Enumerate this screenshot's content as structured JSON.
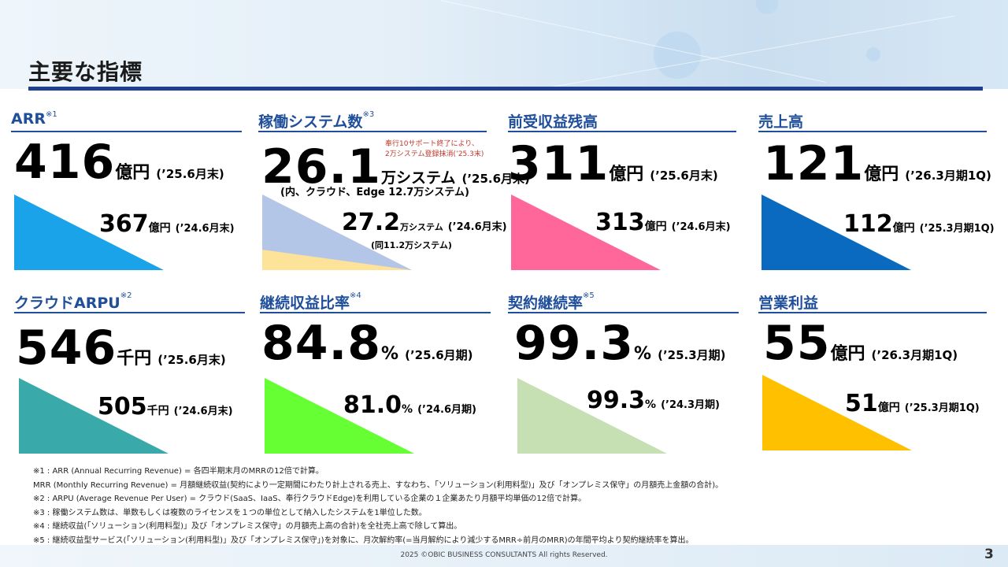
{
  "title": "主要な指標",
  "metrics": {
    "arr": {
      "title": "ARR",
      "mark": "※1",
      "value": "416",
      "unit": "億円",
      "period": "(’25.6月末)",
      "prev_value": "367",
      "prev_unit": "億円",
      "prev_period": "(’24.6月末)",
      "color": "#1aa3e8"
    },
    "systems": {
      "title": "稼働システム数",
      "mark": "※3",
      "value": "26.1",
      "unit": "万システム",
      "period": "(’25.6月末)",
      "sub_note": "(内、クラウド、Edge  12.7万システム)",
      "red_note_1": "奉行10サポート終了により、",
      "red_note_2": "2万システム登録抹消(’25.3末)",
      "prev_value": "27.2",
      "prev_unit": "万システム",
      "prev_period": "(’24.6月末)",
      "prev_note": "(同11.2万システム)",
      "color": "#b4c6e7",
      "color2": "#fde29a"
    },
    "deferred": {
      "title": "前受収益残高",
      "mark": "",
      "value": "311",
      "unit": "億円",
      "period": "(’25.6月末)",
      "prev_value": "313",
      "prev_unit": "億円",
      "prev_period": "(’24.6月末)",
      "color": "#ff6699"
    },
    "sales": {
      "title": "売上高",
      "mark": "",
      "value": "121",
      "unit": "億円",
      "period": "(’26.3月期1Q)",
      "prev_value": "112",
      "prev_unit": "億円",
      "prev_period": "(’25.3月期1Q)",
      "color": "#0a6abf"
    },
    "arpu": {
      "title": "クラウドARPU",
      "mark": "※2",
      "value": "546",
      "unit": "千円",
      "period": "(’25.6月末)",
      "prev_value": "505",
      "prev_unit": "千円",
      "prev_period": "(’24.6月末)",
      "color": "#3aa9a9"
    },
    "recurring": {
      "title": "継続収益比率",
      "mark": "※4",
      "value": "84.8",
      "unit": "%",
      "period": "(’25.6月期)",
      "prev_value": "81.0",
      "prev_unit": "%",
      "prev_period": "(’24.6月期)",
      "color": "#66ff33"
    },
    "renewal": {
      "title": "契約継続率",
      "mark": "※5",
      "value": "99.3",
      "unit": "%",
      "period": "(’25.3月期)",
      "prev_value": "99.3",
      "prev_unit": "%",
      "prev_period": "(’24.3月期)",
      "color": "#c6e0b4"
    },
    "op_income": {
      "title": "営業利益",
      "mark": "",
      "value": "55",
      "unit": "億円",
      "period": "(’26.3月期1Q)",
      "prev_value": "51",
      "prev_unit": "億円",
      "prev_period": "(’25.3月期1Q)",
      "color": "#ffc000"
    }
  },
  "footnotes": [
    "※1 : ARR (Annual Recurring Revenue)   =  各四半期末月のMRRの12倍で計算。",
    "         MRR (Monthly Recurring Revenue)  =  月額継続収益(契約により一定期間にわたり計上される売上、すなわち、「ソリューション(利用料型)」及び「オンプレミス保守」の月額売上金額の合計)。",
    "※2 : ARPU (Average Revenue Per User)  =  クラウド(SaaS、IaaS、奉行クラウドEdge)を利用している企業の１企業あたり月額平均単価の12倍で計算。",
    "※3 : 稼働システム数は、単数もしくは複数のライセンスを１つの単位として納入したシステムを1単位した数。",
    "※4 : 継続収益(「ソリューション(利用料型)」及び「オンプレミス保守」の月額売上高の合計)を全社売上高で除して算出。",
    "※5 : 継続収益型サービス(「ソリューション(利用料型)」及び「オンプレミス保守」)を対象に、月次解約率(=当月解約により減少するMRR÷前月のMRR)の年間平均より契約継続率を算出。"
  ],
  "copyright": "2025  ©OBIC BUSINESS CONSULTANTS All rights Reserved.",
  "page_number": "3"
}
